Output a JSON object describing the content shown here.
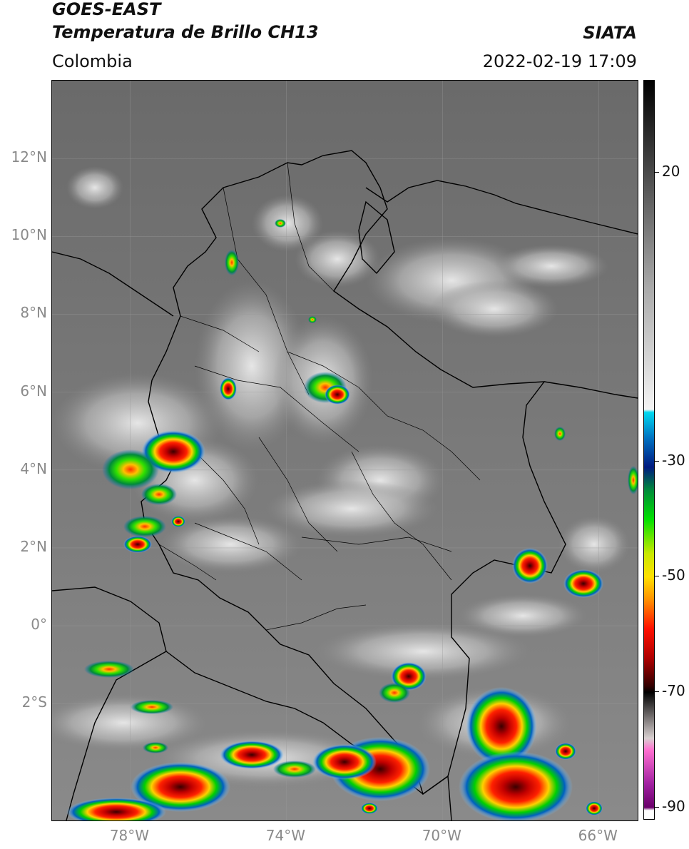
{
  "header": {
    "satellite": "GOES-EAST",
    "product": "Temperatura de Brillo CH13",
    "region": "Colombia",
    "brand": "SIATA",
    "timestamp": "2022-02-19 17:09"
  },
  "map": {
    "lat_range": [
      -5,
      14
    ],
    "lon_range": [
      -80,
      -65
    ],
    "lat_ticks": [
      {
        "value": 12,
        "label": "12°N"
      },
      {
        "value": 10,
        "label": "10°N"
      },
      {
        "value": 8,
        "label": "8°N"
      },
      {
        "value": 6,
        "label": "6°N"
      },
      {
        "value": 4,
        "label": "4°N"
      },
      {
        "value": 2,
        "label": "2°N"
      },
      {
        "value": 0,
        "label": "0°"
      },
      {
        "value": -2,
        "label": "2°S"
      }
    ],
    "lon_ticks": [
      {
        "value": -78,
        "label": "78°W"
      },
      {
        "value": -74,
        "label": "74°W"
      },
      {
        "value": -70,
        "label": "70°W"
      },
      {
        "value": -66,
        "label": "66°W"
      }
    ],
    "colors": {
      "background": "#6e6e6e",
      "borders": "#000000"
    }
  },
  "colorbar": {
    "range": [
      -92,
      36
    ],
    "ticks": [
      {
        "value": 20,
        "label": "20"
      },
      {
        "value": -30,
        "label": "-30"
      },
      {
        "value": -50,
        "label": "-50"
      },
      {
        "value": -70,
        "label": "-70"
      },
      {
        "value": -90,
        "label": "-90"
      }
    ],
    "stops": [
      {
        "value": 36,
        "color": "#000000"
      },
      {
        "value": 20,
        "color": "#4a4a4a"
      },
      {
        "value": 0,
        "color": "#aaaaaa"
      },
      {
        "value": -21,
        "color": "#f4f4f4"
      },
      {
        "value": -21.5,
        "color": "#00d8f0"
      },
      {
        "value": -26,
        "color": "#0070c0"
      },
      {
        "value": -31,
        "color": "#001a80"
      },
      {
        "value": -35,
        "color": "#008a3a"
      },
      {
        "value": -40,
        "color": "#00e000"
      },
      {
        "value": -46,
        "color": "#c8e800"
      },
      {
        "value": -50,
        "color": "#ffe000"
      },
      {
        "value": -54,
        "color": "#ff9000"
      },
      {
        "value": -59,
        "color": "#ff1000"
      },
      {
        "value": -64,
        "color": "#b00000"
      },
      {
        "value": -69,
        "color": "#300000"
      },
      {
        "value": -70,
        "color": "#000000"
      },
      {
        "value": -78,
        "color": "#d8d0d0"
      },
      {
        "value": -80,
        "color": "#ff70d0"
      },
      {
        "value": -86,
        "color": "#a020a0"
      },
      {
        "value": -90,
        "color": "#6a006a"
      },
      {
        "value": -90.5,
        "color": "#ffffff"
      }
    ]
  }
}
